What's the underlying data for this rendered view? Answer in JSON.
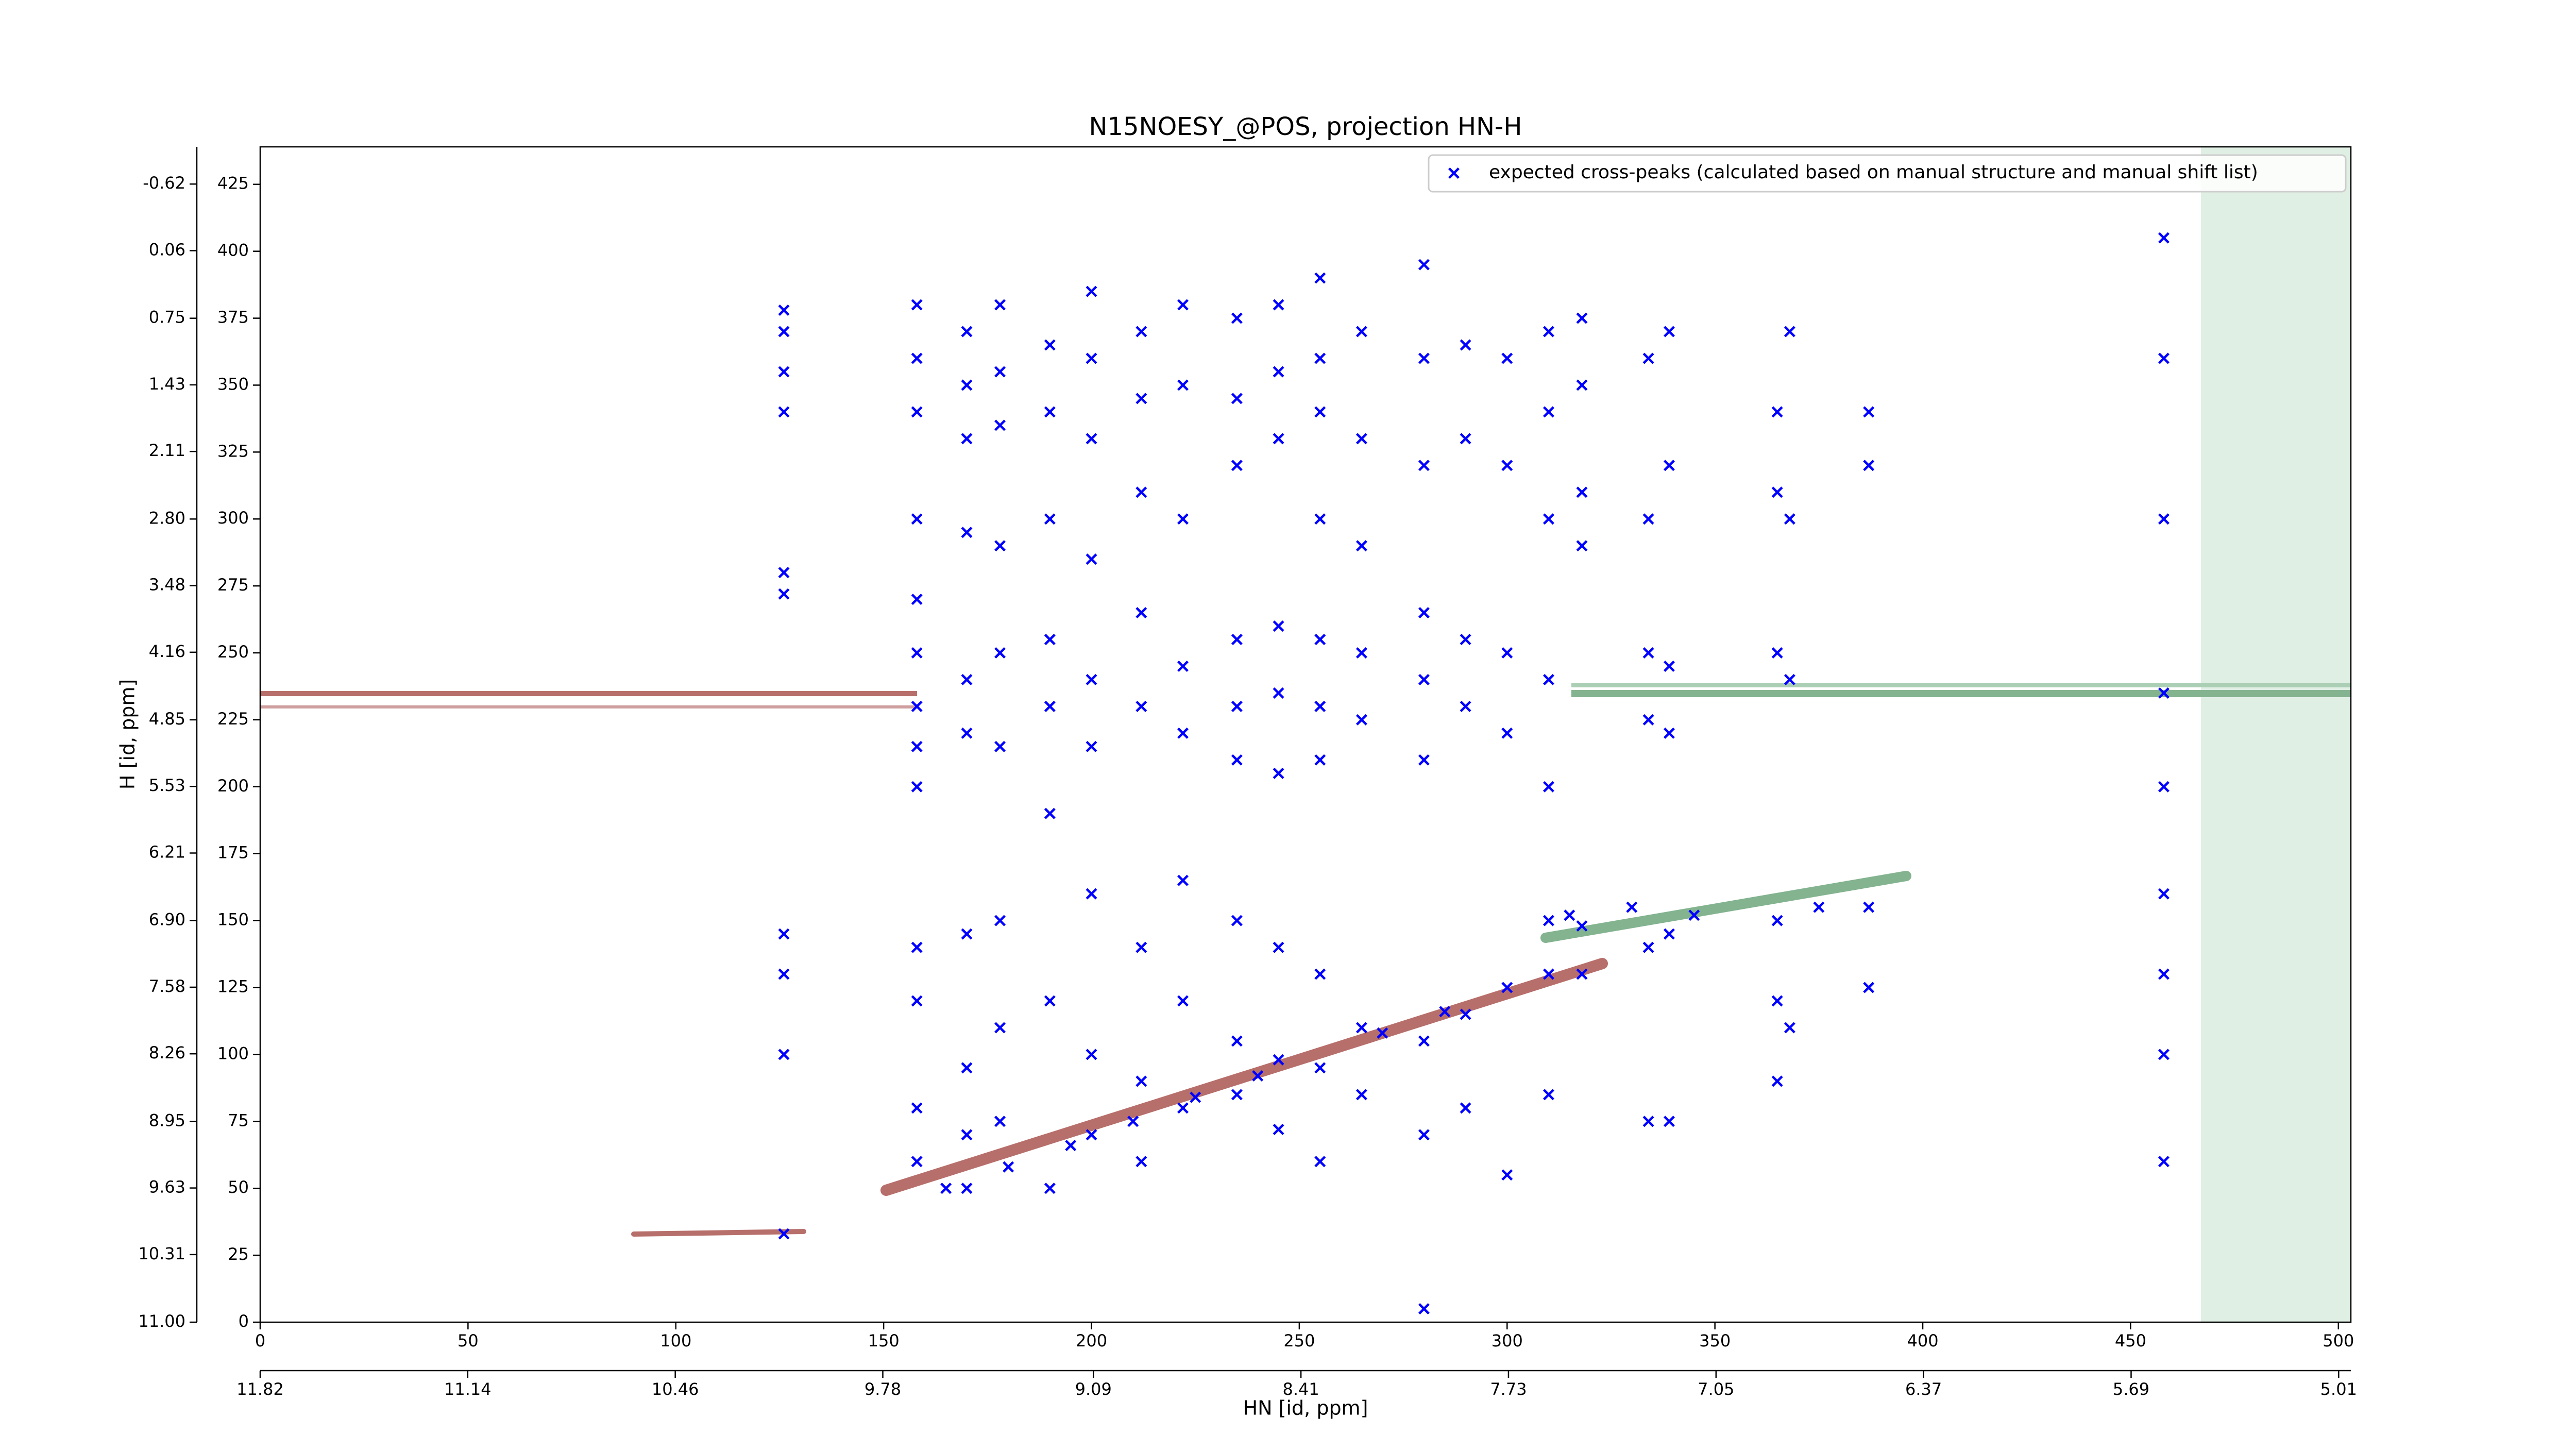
{
  "chart_data": {
    "type": "scatter",
    "title": "N15NOESY_@POS, projection HN-H",
    "xlabel": "HN [id, ppm]",
    "ylabel": "H [id, ppm]",
    "xlim": [
      0,
      503
    ],
    "xticks": [
      0,
      50,
      100,
      150,
      200,
      250,
      300,
      350,
      400,
      450,
      500
    ],
    "x2lim": [
      11.82,
      4.97
    ],
    "x2ticks": [
      11.82,
      11.14,
      10.46,
      9.78,
      9.09,
      8.41,
      7.73,
      7.05,
      6.37,
      5.69,
      5.01
    ],
    "ylim": [
      0,
      439
    ],
    "yticks": [
      0,
      25,
      50,
      75,
      100,
      125,
      150,
      175,
      200,
      225,
      250,
      275,
      300,
      325,
      350,
      375,
      400,
      425
    ],
    "y2lim": [
      11.0,
      -1.0
    ],
    "y2ticks": [
      {
        "value": 11.0,
        "label": "11.00"
      },
      10.31,
      9.63,
      8.95,
      8.26,
      7.58,
      {
        "value": 6.9,
        "label": "6.90"
      },
      6.21,
      5.53,
      4.85,
      4.16,
      3.48,
      {
        "value": 2.8,
        "label": "2.80"
      },
      2.11,
      1.43,
      0.75,
      0.06,
      -0.62
    ],
    "legend": "upper right",
    "series": [
      {
        "name": "expected cross-peaks (calculated based on manual structure and manual shift list)",
        "color": "#0000ff",
        "x": [
          126,
          126,
          126,
          126,
          126,
          126,
          126,
          126,
          126,
          126,
          158,
          158,
          158,
          158,
          158,
          158,
          158,
          158,
          158,
          158,
          158,
          158,
          158,
          170,
          170,
          170,
          170,
          170,
          170,
          170,
          170,
          170,
          170,
          178,
          178,
          178,
          178,
          178,
          178,
          178,
          178,
          178,
          190,
          190,
          190,
          190,
          190,
          190,
          190,
          190,
          200,
          200,
          200,
          200,
          200,
          200,
          200,
          200,
          200,
          212,
          212,
          212,
          212,
          212,
          212,
          212,
          212,
          222,
          222,
          222,
          222,
          222,
          222,
          222,
          222,
          235,
          235,
          235,
          235,
          235,
          235,
          235,
          235,
          235,
          245,
          245,
          245,
          245,
          245,
          245,
          245,
          245,
          245,
          255,
          255,
          255,
          255,
          255,
          255,
          255,
          255,
          255,
          255,
          265,
          265,
          265,
          265,
          265,
          265,
          265,
          280,
          280,
          280,
          280,
          280,
          280,
          280,
          280,
          280,
          290,
          290,
          290,
          290,
          290,
          290,
          300,
          300,
          300,
          300,
          300,
          300,
          310,
          310,
          310,
          310,
          310,
          310,
          310,
          310,
          318,
          318,
          318,
          318,
          318,
          318,
          334,
          334,
          334,
          334,
          334,
          334,
          339,
          339,
          339,
          339,
          339,
          339,
          365,
          365,
          365,
          365,
          365,
          365,
          368,
          368,
          368,
          368,
          387,
          387,
          387,
          387,
          458,
          458,
          458,
          458,
          458,
          458,
          458,
          458,
          458,
          165,
          180,
          195,
          210,
          225,
          240,
          270,
          285,
          315,
          330,
          345,
          375
        ],
        "values": [
          378,
          370,
          355,
          340,
          280,
          272,
          145,
          130,
          100,
          33,
          380,
          360,
          340,
          300,
          270,
          250,
          230,
          215,
          200,
          140,
          120,
          80,
          60,
          370,
          350,
          330,
          295,
          240,
          220,
          145,
          95,
          70,
          50,
          380,
          355,
          335,
          290,
          250,
          215,
          150,
          110,
          75,
          365,
          340,
          300,
          255,
          230,
          190,
          120,
          50,
          385,
          360,
          330,
          285,
          240,
          215,
          160,
          100,
          70,
          370,
          345,
          310,
          265,
          230,
          140,
          90,
          60,
          380,
          350,
          300,
          245,
          220,
          165,
          120,
          80,
          375,
          345,
          320,
          255,
          230,
          210,
          150,
          105,
          85,
          380,
          355,
          330,
          260,
          235,
          205,
          140,
          98,
          72,
          390,
          360,
          340,
          300,
          255,
          230,
          210,
          130,
          95,
          60,
          370,
          330,
          290,
          250,
          225,
          110,
          85,
          395,
          360,
          320,
          265,
          240,
          210,
          105,
          70,
          5,
          365,
          330,
          255,
          230,
          115,
          80,
          360,
          320,
          250,
          220,
          125,
          55,
          370,
          340,
          300,
          240,
          200,
          150,
          130,
          85,
          375,
          350,
          310,
          290,
          148,
          130,
          360,
          300,
          250,
          225,
          140,
          75,
          370,
          320,
          245,
          220,
          145,
          75,
          340,
          310,
          250,
          150,
          120,
          90,
          370,
          300,
          240,
          110,
          340,
          320,
          155,
          125,
          405,
          360,
          300,
          235,
          200,
          160,
          130,
          100,
          60,
          50,
          58,
          66,
          75,
          84,
          92,
          108,
          116,
          152,
          155,
          152,
          155
        ]
      }
    ]
  }
}
